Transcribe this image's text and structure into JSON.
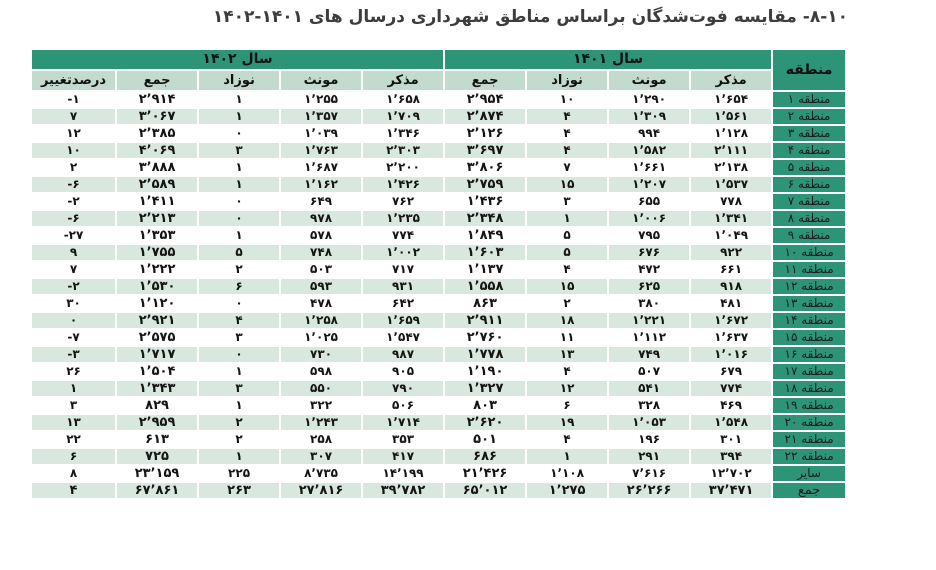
{
  "page": {
    "title": "۸-۱۰- مقایسه فوت‌شدگان براساس مناطق شهرداری درسال های ۱۴۰۱-۱۴۰۲"
  },
  "colors": {
    "header_green": "#2e9478",
    "sub_header_green": "#c3dbce",
    "stripe_green": "#d8e8de",
    "text": "#141414"
  },
  "table": {
    "headers": {
      "region": "منطقه",
      "year_1401": "سال ۱۴۰۱",
      "year_1402": "سال ۱۴۰۲",
      "col_male": "مذکر",
      "col_female": "مونث",
      "col_newborn": "نوزاد",
      "col_total": "جمع",
      "col_pct_change": "درصدتغییر"
    },
    "cell_keys": [
      "region",
      "y1401.male",
      "y1401.female",
      "y1401.newborn",
      "y1401.total",
      "y1402.male",
      "y1402.female",
      "y1402.newborn",
      "y1402.total",
      "pct_change"
    ],
    "rows": [
      {
        "region": "منطقه ۱",
        "y1401": {
          "male": "۱٬۶۵۴",
          "female": "۱٬۲۹۰",
          "newborn": "۱۰",
          "total": "۲٬۹۵۴"
        },
        "y1402": {
          "male": "۱٬۶۵۸",
          "female": "۱٬۲۵۵",
          "newborn": "۱",
          "total": "۲٬۹۱۴"
        },
        "pct_change": "-۱"
      },
      {
        "region": "منطقه ۲",
        "y1401": {
          "male": "۱٬۵۶۱",
          "female": "۱٬۳۰۹",
          "newborn": "۴",
          "total": "۲٬۸۷۴"
        },
        "y1402": {
          "male": "۱٬۷۰۹",
          "female": "۱٬۳۵۷",
          "newborn": "۱",
          "total": "۳٬۰۶۷"
        },
        "pct_change": "۷"
      },
      {
        "region": "منطقه ۳",
        "y1401": {
          "male": "۱٬۱۲۸",
          "female": "۹۹۴",
          "newborn": "۴",
          "total": "۲٬۱۲۶"
        },
        "y1402": {
          "male": "۱٬۳۴۶",
          "female": "۱٬۰۳۹",
          "newborn": "۰",
          "total": "۲٬۳۸۵"
        },
        "pct_change": "۱۲"
      },
      {
        "region": "منطقه ۴",
        "y1401": {
          "male": "۲٬۱۱۱",
          "female": "۱٬۵۸۲",
          "newborn": "۴",
          "total": "۳٬۶۹۷"
        },
        "y1402": {
          "male": "۲٬۳۰۳",
          "female": "۱٬۷۶۳",
          "newborn": "۳",
          "total": "۴٬۰۶۹"
        },
        "pct_change": "۱۰"
      },
      {
        "region": "منطقه ۵",
        "y1401": {
          "male": "۲٬۱۳۸",
          "female": "۱٬۶۶۱",
          "newborn": "۷",
          "total": "۳٬۸۰۶"
        },
        "y1402": {
          "male": "۲٬۲۰۰",
          "female": "۱٬۶۸۷",
          "newborn": "۱",
          "total": "۳٬۸۸۸"
        },
        "pct_change": "۲"
      },
      {
        "region": "منطقه ۶",
        "y1401": {
          "male": "۱٬۵۳۷",
          "female": "۱٬۲۰۷",
          "newborn": "۱۵",
          "total": "۲٬۷۵۹"
        },
        "y1402": {
          "male": "۱٬۴۲۶",
          "female": "۱٬۱۶۲",
          "newborn": "۱",
          "total": "۲٬۵۸۹"
        },
        "pct_change": "-۶"
      },
      {
        "region": "منطقه ۷",
        "y1401": {
          "male": "۷۷۸",
          "female": "۶۵۵",
          "newborn": "۳",
          "total": "۱٬۴۳۶"
        },
        "y1402": {
          "male": "۷۶۲",
          "female": "۶۴۹",
          "newborn": "۰",
          "total": "۱٬۴۱۱"
        },
        "pct_change": "-۲"
      },
      {
        "region": "منطقه ۸",
        "y1401": {
          "male": "۱٬۳۴۱",
          "female": "۱٬۰۰۶",
          "newborn": "۱",
          "total": "۲٬۳۴۸"
        },
        "y1402": {
          "male": "۱٬۲۳۵",
          "female": "۹۷۸",
          "newborn": "۰",
          "total": "۲٬۲۱۳"
        },
        "pct_change": "-۶"
      },
      {
        "region": "منطقه ۹",
        "y1401": {
          "male": "۱٬۰۴۹",
          "female": "۷۹۵",
          "newborn": "۵",
          "total": "۱٬۸۴۹"
        },
        "y1402": {
          "male": "۷۷۴",
          "female": "۵۷۸",
          "newborn": "۱",
          "total": "۱٬۳۵۳"
        },
        "pct_change": "-۲۷"
      },
      {
        "region": "منطقه ۱۰",
        "y1401": {
          "male": "۹۲۲",
          "female": "۶۷۶",
          "newborn": "۵",
          "total": "۱٬۶۰۳"
        },
        "y1402": {
          "male": "۱٬۰۰۲",
          "female": "۷۴۸",
          "newborn": "۵",
          "total": "۱٬۷۵۵"
        },
        "pct_change": "۹"
      },
      {
        "region": "منطقه ۱۱",
        "y1401": {
          "male": "۶۶۱",
          "female": "۴۷۲",
          "newborn": "۴",
          "total": "۱٬۱۳۷"
        },
        "y1402": {
          "male": "۷۱۷",
          "female": "۵۰۳",
          "newborn": "۲",
          "total": "۱٬۲۲۲"
        },
        "pct_change": "۷"
      },
      {
        "region": "منطقه ۱۲",
        "y1401": {
          "male": "۹۱۸",
          "female": "۶۲۵",
          "newborn": "۱۵",
          "total": "۱٬۵۵۸"
        },
        "y1402": {
          "male": "۹۳۱",
          "female": "۵۹۳",
          "newborn": "۶",
          "total": "۱٬۵۳۰"
        },
        "pct_change": "-۲"
      },
      {
        "region": "منطقه ۱۳",
        "y1401": {
          "male": "۴۸۱",
          "female": "۳۸۰",
          "newborn": "۲",
          "total": "۸۶۳"
        },
        "y1402": {
          "male": "۶۴۲",
          "female": "۴۷۸",
          "newborn": "۰",
          "total": "۱٬۱۲۰"
        },
        "pct_change": "۳۰"
      },
      {
        "region": "منطقه ۱۴",
        "y1401": {
          "male": "۱٬۶۷۲",
          "female": "۱٬۲۲۱",
          "newborn": "۱۸",
          "total": "۲٬۹۱۱"
        },
        "y1402": {
          "male": "۱٬۶۵۹",
          "female": "۱٬۲۵۸",
          "newborn": "۴",
          "total": "۲٬۹۲۱"
        },
        "pct_change": "۰"
      },
      {
        "region": "منطقه ۱۵",
        "y1401": {
          "male": "۱٬۶۳۷",
          "female": "۱٬۱۱۲",
          "newborn": "۱۱",
          "total": "۲٬۷۶۰"
        },
        "y1402": {
          "male": "۱٬۵۴۷",
          "female": "۱٬۰۲۵",
          "newborn": "۳",
          "total": "۲٬۵۷۵"
        },
        "pct_change": "-۷"
      },
      {
        "region": "منطقه ۱۶",
        "y1401": {
          "male": "۱٬۰۱۶",
          "female": "۷۴۹",
          "newborn": "۱۳",
          "total": "۱٬۷۷۸"
        },
        "y1402": {
          "male": "۹۸۷",
          "female": "۷۳۰",
          "newborn": "۰",
          "total": "۱٬۷۱۷"
        },
        "pct_change": "-۳"
      },
      {
        "region": "منطقه ۱۷",
        "y1401": {
          "male": "۶۷۹",
          "female": "۵۰۷",
          "newborn": "۴",
          "total": "۱٬۱۹۰"
        },
        "y1402": {
          "male": "۹۰۵",
          "female": "۵۹۸",
          "newborn": "۱",
          "total": "۱٬۵۰۴"
        },
        "pct_change": "۲۶"
      },
      {
        "region": "منطقه ۱۸",
        "y1401": {
          "male": "۷۷۴",
          "female": "۵۴۱",
          "newborn": "۱۲",
          "total": "۱٬۳۲۷"
        },
        "y1402": {
          "male": "۷۹۰",
          "female": "۵۵۰",
          "newborn": "۳",
          "total": "۱٬۳۴۳"
        },
        "pct_change": "۱"
      },
      {
        "region": "منطقه ۱۹",
        "y1401": {
          "male": "۴۶۹",
          "female": "۳۲۸",
          "newborn": "۶",
          "total": "۸۰۳"
        },
        "y1402": {
          "male": "۵۰۶",
          "female": "۳۲۲",
          "newborn": "۱",
          "total": "۸۲۹"
        },
        "pct_change": "۳"
      },
      {
        "region": "منطقه ۲۰",
        "y1401": {
          "male": "۱٬۵۴۸",
          "female": "۱٬۰۵۳",
          "newborn": "۱۹",
          "total": "۲٬۶۲۰"
        },
        "y1402": {
          "male": "۱٬۷۱۴",
          "female": "۱٬۲۴۳",
          "newborn": "۲",
          "total": "۲٬۹۵۹"
        },
        "pct_change": "۱۳"
      },
      {
        "region": "منطقه ۲۱",
        "y1401": {
          "male": "۳۰۱",
          "female": "۱۹۶",
          "newborn": "۴",
          "total": "۵۰۱"
        },
        "y1402": {
          "male": "۳۵۳",
          "female": "۲۵۸",
          "newborn": "۲",
          "total": "۶۱۳"
        },
        "pct_change": "۲۲"
      },
      {
        "region": "منطقه ۲۲",
        "y1401": {
          "male": "۳۹۴",
          "female": "۲۹۱",
          "newborn": "۱",
          "total": "۶۸۶"
        },
        "y1402": {
          "male": "۴۱۷",
          "female": "۳۰۷",
          "newborn": "۱",
          "total": "۷۲۵"
        },
        "pct_change": "۶"
      },
      {
        "region": "سایر",
        "y1401": {
          "male": "۱۲٬۷۰۲",
          "female": "۷٬۶۱۶",
          "newborn": "۱٬۱۰۸",
          "total": "۲۱٬۴۲۶"
        },
        "y1402": {
          "male": "۱۴٬۱۹۹",
          "female": "۸٬۷۳۵",
          "newborn": "۲۲۵",
          "total": "۲۳٬۱۵۹"
        },
        "pct_change": "۸"
      },
      {
        "region": "جمع",
        "y1401": {
          "male": "۳۷٬۴۷۱",
          "female": "۲۶٬۲۶۶",
          "newborn": "۱٬۲۷۵",
          "total": "۶۵٬۰۱۲"
        },
        "y1402": {
          "male": "۳۹٬۷۸۲",
          "female": "۲۷٬۸۱۶",
          "newborn": "۲۶۳",
          "total": "۶۷٬۸۶۱"
        },
        "pct_change": "۴"
      }
    ]
  }
}
